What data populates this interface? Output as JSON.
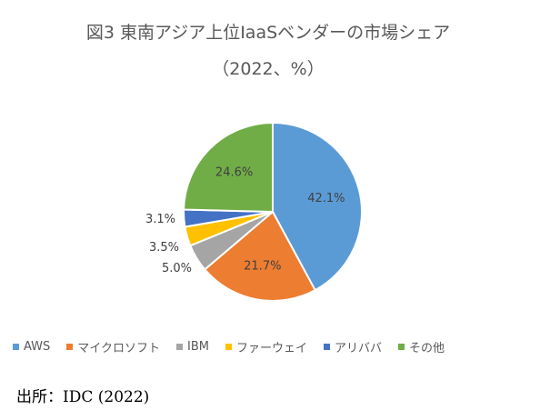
{
  "chart_data": {
    "type": "pie",
    "title": "図3 東南アジア上位IaaSベンダーの市場シェア",
    "subtitle": "（2022、%）",
    "categories": [
      "AWS",
      "マイクロソフト",
      "IBM",
      "ファーウェイ",
      "アリババ",
      "その他"
    ],
    "values": [
      42.1,
      21.7,
      5.0,
      3.5,
      3.1,
      24.6
    ],
    "value_labels": [
      "42.1%",
      "21.7%",
      "5.0%",
      "3.5%",
      "3.1%",
      "24.6%"
    ],
    "colors": [
      "#5B9BD5",
      "#ED7D31",
      "#A5A5A5",
      "#FFC000",
      "#4472C4",
      "#70AD47"
    ],
    "legend_position": "bottom"
  },
  "source": "出所：IDC (2022)"
}
